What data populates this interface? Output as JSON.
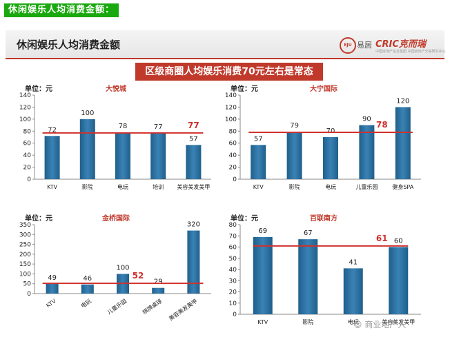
{
  "top_label": "休闲娱乐人均消费金额：",
  "slide": {
    "title": "休闲娱乐人均消费金额",
    "logo_eju": "EJU",
    "logo_eju_text": "易居",
    "logo_cric": "CRIC克而瑞",
    "logo_cric_sub": "中国房地产信息集团 中国房地产交易研究中心",
    "banner": "区级商圈人均娱乐消费70元左右是常态"
  },
  "watermark": "商业地产人",
  "colors": {
    "bar": "#1f5f8b",
    "bar_light": "#3a82b5",
    "avg_line": "#d0312d",
    "accent": "#c0392b"
  },
  "chart_data": [
    {
      "type": "bar",
      "title": "大悦城",
      "ylabel": "单位：元",
      "categories": [
        "KTV",
        "影院",
        "电玩",
        "培训",
        "美容美发美甲"
      ],
      "values": [
        72,
        100,
        78,
        77,
        57
      ],
      "average": 77,
      "ylim": [
        0,
        140
      ],
      "yticks": [
        0,
        20,
        40,
        60,
        80,
        100,
        120,
        140
      ]
    },
    {
      "type": "bar",
      "title": "大宁国际",
      "ylabel": "单位：元",
      "categories": [
        "KTV",
        "影院",
        "电玩",
        "儿童乐园",
        "健身SPA"
      ],
      "values": [
        57,
        79,
        70,
        90,
        120
      ],
      "average": 78,
      "ylim": [
        0,
        140
      ],
      "yticks": [
        0,
        20,
        40,
        60,
        80,
        100,
        120,
        140
      ]
    },
    {
      "type": "bar",
      "title": "金桥国际",
      "ylabel": "单位：元",
      "categories": [
        "KTV",
        "电玩",
        "儿童乐园",
        "棋牌桌球",
        "美容美发美甲"
      ],
      "values": [
        49,
        46,
        100,
        29,
        320
      ],
      "average": 52,
      "ylim": [
        0,
        350
      ],
      "yticks": [
        0,
        50,
        100,
        150,
        200,
        250,
        300,
        350
      ]
    },
    {
      "type": "bar",
      "title": "百联南方",
      "ylabel": "单位：元",
      "categories": [
        "KTV",
        "影院",
        "电玩",
        "美容美发美甲"
      ],
      "values": [
        69,
        67,
        41,
        60
      ],
      "average": 61,
      "ylim": [
        0,
        80
      ],
      "yticks": [
        0,
        10,
        20,
        30,
        40,
        50,
        60,
        70,
        80
      ]
    }
  ]
}
